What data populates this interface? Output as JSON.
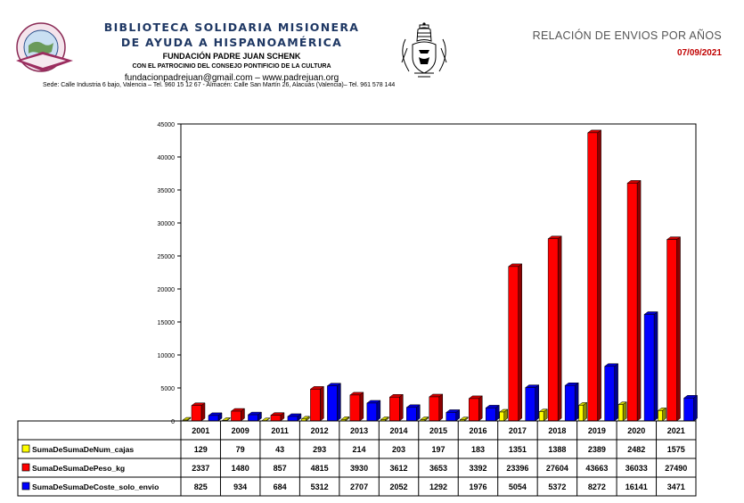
{
  "header": {
    "org_line1": "BIBLIOTECA SOLIDARIA MISIONERA",
    "org_line2": "DE AYUDA A HISPANOAMÉRICA",
    "foundation": "FUNDACIÓN PADRE JUAN SCHENK",
    "patronage": "CON EL PATROCINIO DEL CONSEJO PONTIFICIO DE LA CULTURA",
    "contact": "fundacionpadrejuan@gmail.com – www.padrejuan.org",
    "address": "Sede: Calle Industria 6 bajo, Valencia – Tel. 960 15 12 67 - Almacén: Calle San Martín 26, Alacuás (Valencia)– Tel. 961 578 144",
    "report_title": "RELACIÓN DE ENVIOS POR AÑOS",
    "report_date": "07/09/2021"
  },
  "chart_data": {
    "type": "bar",
    "categories": [
      "2001",
      "2009",
      "2011",
      "2012",
      "2013",
      "2014",
      "2015",
      "2016",
      "2017",
      "2018",
      "2019",
      "2020",
      "2021"
    ],
    "series": [
      {
        "name": "SumaDeSumaDeNum_cajas",
        "color": "#ffff00",
        "values": [
          129,
          79,
          43,
          293,
          214,
          203,
          197,
          183,
          1351,
          1388,
          2389,
          2482,
          1575
        ]
      },
      {
        "name": "SumaDeSumaDePeso_kg",
        "color": "#ff0000",
        "values": [
          2337,
          1480,
          857,
          4815,
          3930,
          3612,
          3653,
          3392,
          23396,
          27604,
          43663,
          36033,
          27490
        ]
      },
      {
        "name": "SumaDeSumaDeCoste_solo_envio",
        "color": "#0000ff",
        "values": [
          825,
          934,
          684,
          5312,
          2707,
          2052,
          1292,
          1976,
          5054,
          5372,
          8272,
          16141,
          3471
        ]
      }
    ],
    "yticks": [
      "0",
      "5000",
      "10000",
      "15000",
      "20000",
      "25000",
      "30000",
      "35000",
      "40000",
      "45000"
    ],
    "ylim": [
      0,
      45000
    ],
    "grid": false,
    "legend": "data-table-below"
  }
}
